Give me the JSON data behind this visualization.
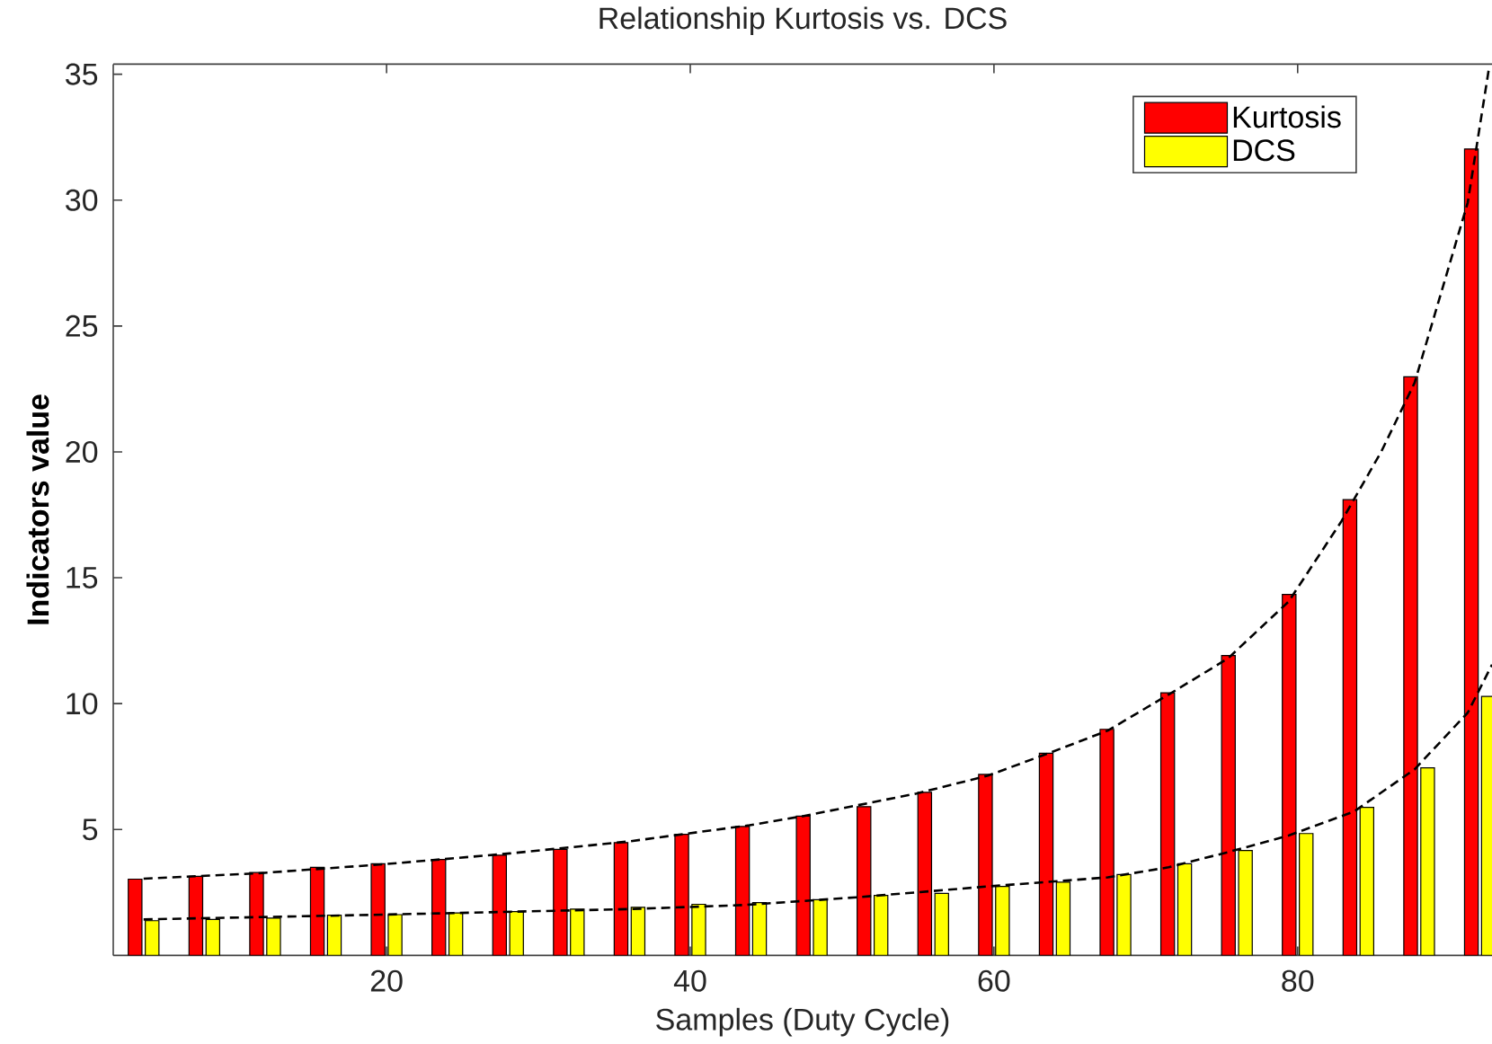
{
  "chart_data": {
    "type": "bar",
    "title": "Relationship Kurtosis vs. DCS",
    "xlabel": "Samples (Duty Cycle)",
    "ylabel": "Indicators value",
    "x": [
      4,
      8,
      12,
      16,
      20,
      24,
      28,
      32,
      36,
      40,
      44,
      48,
      52,
      56,
      60,
      64,
      68,
      72,
      76,
      80,
      84,
      88,
      92
    ],
    "xlim": [
      2,
      92.8
    ],
    "ylim": [
      0,
      35.4
    ],
    "xticks": [
      20,
      40,
      60,
      80
    ],
    "yticks": [
      5,
      10,
      15,
      20,
      25,
      30,
      35
    ],
    "legend": "top right",
    "series": [
      {
        "name": "Kurtosis",
        "color": "#ff0000",
        "values": [
          3.03,
          3.14,
          3.29,
          3.5,
          3.64,
          3.81,
          3.98,
          4.21,
          4.48,
          4.81,
          5.12,
          5.53,
          5.91,
          6.48,
          7.19,
          8.03,
          8.98,
          10.43,
          11.91,
          14.34,
          18.1,
          22.98,
          32.03
        ]
      },
      {
        "name": "DCS",
        "color": "#ffff00",
        "values": [
          1.38,
          1.43,
          1.48,
          1.6,
          1.62,
          1.69,
          1.74,
          1.84,
          1.91,
          2.03,
          2.1,
          2.21,
          2.38,
          2.46,
          2.74,
          2.91,
          3.21,
          3.64,
          4.17,
          4.84,
          5.88,
          7.45,
          10.29
        ]
      },
      {
        "type": "line",
        "color": "#000000",
        "line_style": "dashed",
        "x": [
          4,
          11.5,
          19.8,
          28.1,
          36,
          43.9,
          47.4,
          54.9,
          59.6,
          63.6,
          67.5,
          71.5,
          75.4,
          79.4,
          82.9,
          85.5,
          87.7,
          91.2,
          92.6
        ],
        "values": [
          3.05,
          3.26,
          3.62,
          4.05,
          4.53,
          5.17,
          5.53,
          6.43,
          7.14,
          8.03,
          8.93,
          10.36,
          11.79,
          14.05,
          17.26,
          20.0,
          22.74,
          29.9,
          35.24
        ]
      },
      {
        "type": "line",
        "color": "#000000",
        "line_style": "dashed",
        "x": [
          4,
          19.8,
          36,
          43.5,
          51,
          59.6,
          67.5,
          71.5,
          75.4,
          79.4,
          83.7,
          87.7,
          91.2,
          92.8
        ],
        "values": [
          1.43,
          1.62,
          1.84,
          2.0,
          2.31,
          2.74,
          3.1,
          3.5,
          4.1,
          4.76,
          5.71,
          7.39,
          9.64,
          11.55
        ]
      }
    ]
  }
}
